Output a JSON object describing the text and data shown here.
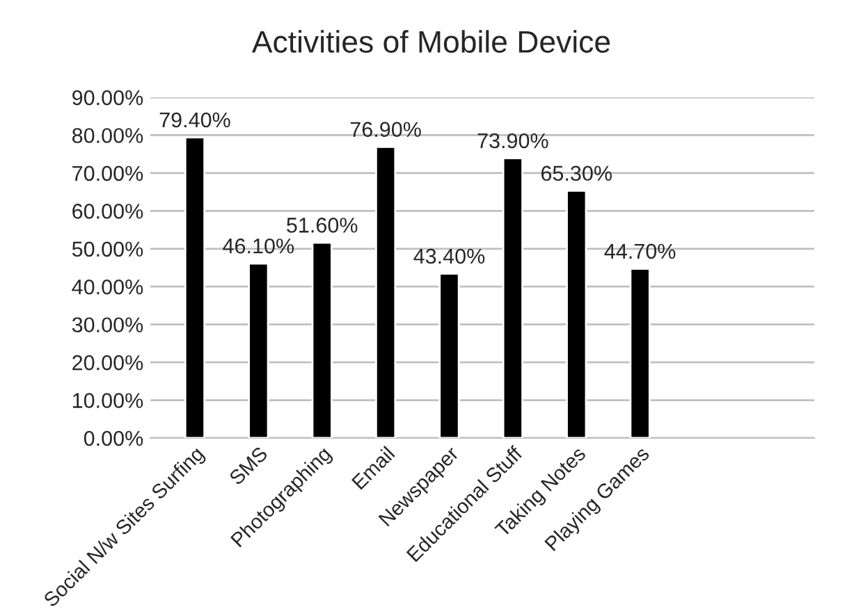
{
  "chart_data": {
    "type": "bar",
    "title": "Activities of Mobile Device",
    "categories": [
      "Social N/w Sites Surfing",
      "SMS",
      "Photographing",
      "Email",
      "Newspaper",
      "Educational Stuff",
      "Taking Notes",
      "Playing Games"
    ],
    "values": [
      79.4,
      46.1,
      51.6,
      76.9,
      43.4,
      73.9,
      65.3,
      44.7
    ],
    "value_labels": [
      "79.40%",
      "46.10%",
      "51.60%",
      "76.90%",
      "43.40%",
      "73.90%",
      "65.30%",
      "44.70%"
    ],
    "color": "#000000",
    "ylim": [
      0,
      90
    ],
    "yticks": [
      {
        "value": 0,
        "label": "0.00%"
      },
      {
        "value": 10,
        "label": "10.00%"
      },
      {
        "value": 20,
        "label": "20.00%"
      },
      {
        "value": 30,
        "label": "30.00%"
      },
      {
        "value": 40,
        "label": "40.00%"
      },
      {
        "value": 50,
        "label": "50.00%"
      },
      {
        "value": 60,
        "label": "60.00%"
      },
      {
        "value": 70,
        "label": "70.00%"
      },
      {
        "value": 80,
        "label": "80.00%"
      },
      {
        "value": 90,
        "label": "90.00%"
      }
    ],
    "grid": "y",
    "legend": false
  }
}
